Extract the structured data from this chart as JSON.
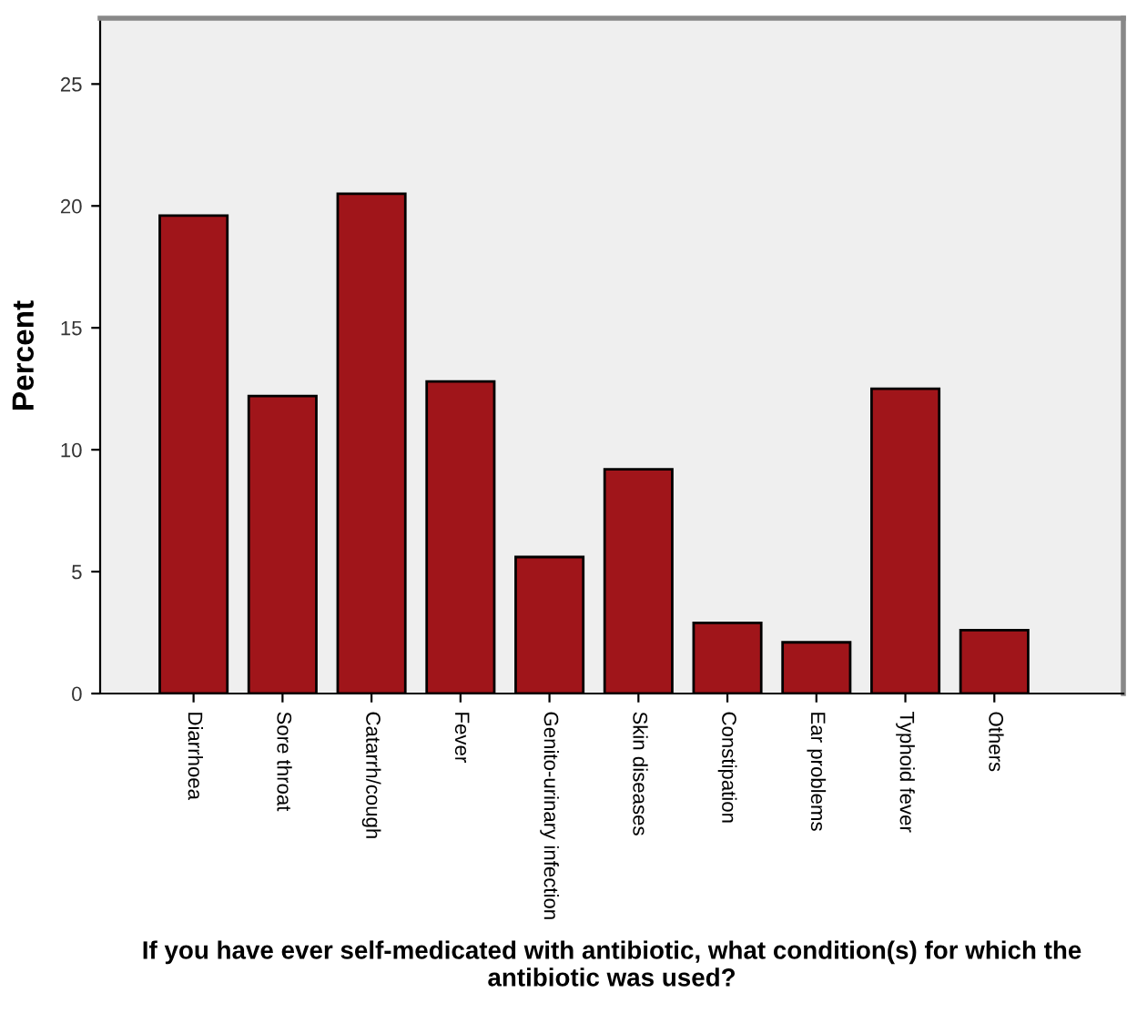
{
  "chart_data": {
    "type": "bar",
    "xlabel": "If you have ever self-medicated with antibiotic, what condition(s) for which the antibiotic was used?",
    "ylabel": "Percent",
    "categories": [
      "Diarrhoea",
      "Sore throat",
      "Catarrh/cough",
      "Fever",
      "Genito-urinary infection",
      "Skin diseases",
      "Constipation",
      "Ear problems",
      "Typhoid fever",
      "Others"
    ],
    "values": [
      19.6,
      12.2,
      20.5,
      12.8,
      5.6,
      9.2,
      2.9,
      2.1,
      12.5,
      2.6
    ],
    "color": "#a0151a",
    "ylim": [
      0,
      27.7
    ],
    "yticks": [
      0,
      5,
      10,
      15,
      20,
      25
    ],
    "grid": false,
    "legend": false
  }
}
